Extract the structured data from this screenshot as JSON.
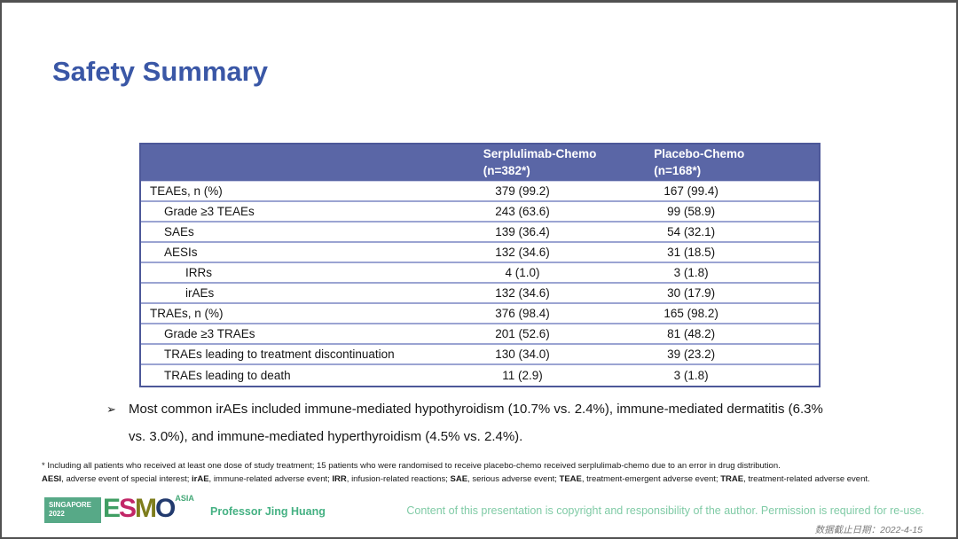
{
  "title": "Safety Summary",
  "table": {
    "header": {
      "col1_line1": "Serplulimab-Chemo",
      "col1_line2": "(n=382*)",
      "col2_line1": "Placebo-Chemo",
      "col2_line2": "(n=168*)"
    },
    "rows": [
      {
        "label": "TEAEs, n (%)",
        "indent": 0,
        "serplulimab": "379 (99.2)",
        "placebo": "167 (99.4)"
      },
      {
        "label": "Grade ≥3 TEAEs",
        "indent": 1,
        "serplulimab": "243 (63.6)",
        "placebo": "99 (58.9)"
      },
      {
        "label": "SAEs",
        "indent": 1,
        "serplulimab": "139 (36.4)",
        "placebo": "54 (32.1)"
      },
      {
        "label": "AESIs",
        "indent": 1,
        "serplulimab": "132 (34.6)",
        "placebo": "31 (18.5)"
      },
      {
        "label": "IRRs",
        "indent": 2,
        "serplulimab": "4 (1.0)",
        "placebo": "3 (1.8)"
      },
      {
        "label": "irAEs",
        "indent": 2,
        "serplulimab": "132 (34.6)",
        "placebo": "30 (17.9)"
      },
      {
        "label": "TRAEs, n (%)",
        "indent": 0,
        "serplulimab": "376 (98.4)",
        "placebo": "165 (98.2)"
      },
      {
        "label": "Grade ≥3 TRAEs",
        "indent": 1,
        "serplulimab": "201 (52.6)",
        "placebo": "81 (48.2)"
      },
      {
        "label": "TRAEs leading to treatment discontinuation",
        "indent": 1,
        "serplulimab": "130 (34.0)",
        "placebo": "39 (23.2)"
      },
      {
        "label": "TRAEs leading to death",
        "indent": 1,
        "serplulimab": "11 (2.9)",
        "placebo": "3 (1.8)"
      }
    ]
  },
  "bullet": {
    "marker": "➢",
    "text": "Most common irAEs included immune-mediated hypothyroidism (10.7% vs. 2.4%), immune-mediated dermatitis (6.3% vs. 3.0%), and immune-mediated hyperthyroidism (4.5% vs. 2.4%)."
  },
  "footnotes": {
    "line1": "* Including all patients who received at least one dose of study treatment; 15 patients who were randomised to receive placebo-chemo received serplulimab-chemo due to an error in drug distribution.",
    "line2_segments": [
      {
        "text": "AESI",
        "bold": true
      },
      {
        "text": ", adverse event of special interest; ",
        "bold": false
      },
      {
        "text": "irAE",
        "bold": true
      },
      {
        "text": ", immune-related adverse event; ",
        "bold": false
      },
      {
        "text": "IRR",
        "bold": true
      },
      {
        "text": ", infusion-related reactions; ",
        "bold": false
      },
      {
        "text": "SAE",
        "bold": true
      },
      {
        "text": ", serious adverse event; ",
        "bold": false
      },
      {
        "text": "TEAE",
        "bold": true
      },
      {
        "text": ", treatment-emergent adverse event; ",
        "bold": false
      },
      {
        "text": "TRAE",
        "bold": true
      },
      {
        "text": ", treatment-related adverse event.",
        "bold": false
      }
    ]
  },
  "footer": {
    "logo": {
      "box_line1": "SINGAPORE",
      "box_line2": "2022",
      "letters": [
        {
          "char": "E",
          "color": "#3f9e63"
        },
        {
          "char": "S",
          "color": "#c22667"
        },
        {
          "char": "M",
          "color": "#7e7d1c"
        },
        {
          "char": "O",
          "color": "#223a6e"
        }
      ],
      "asia": "ASIA"
    },
    "presenter": "Professor Jing Huang",
    "copyright": "Content of this presentation is copyright and responsibility of the author. Permission is required for re-use.",
    "data_cutoff": "数据截止日期：2022-4-15"
  },
  "colors": {
    "title_blue": "#3a57a6",
    "table_header_bg": "#5a66a6",
    "table_border": "#4d5899",
    "row_separator": "#9ba4d2",
    "presenter_green": "#45b183",
    "copyright_green": "#80cba6",
    "cutoff_gray": "#7b7b7b"
  }
}
